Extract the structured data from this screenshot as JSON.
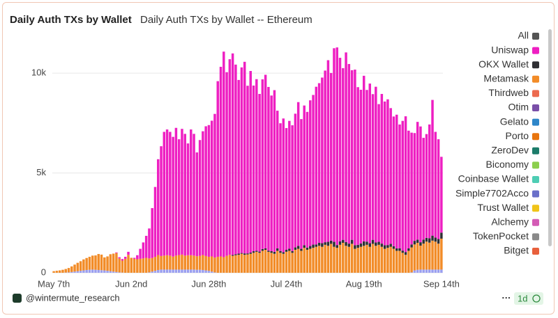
{
  "chart_data": {
    "type": "bar",
    "stacked": true,
    "title": "Daily Auth TXs by Wallet",
    "subtitle": "Daily Auth TXs by Wallet -- Ethereum",
    "footer": "@wintermute_research",
    "interval": "1d",
    "more": "···",
    "ylim": [
      0,
      11400
    ],
    "yticks": [
      0,
      {
        "value": 5000,
        "label": "5k"
      },
      {
        "value": 10000,
        "label": "10k"
      }
    ],
    "grid": true,
    "legend_all": {
      "name": "All",
      "color": "#555555"
    },
    "categories": [
      "May 7th",
      null,
      null,
      null,
      null,
      null,
      null,
      null,
      null,
      null,
      null,
      null,
      null,
      null,
      null,
      null,
      null,
      null,
      null,
      null,
      null,
      null,
      null,
      null,
      null,
      null,
      "Jun 2nd",
      null,
      null,
      null,
      null,
      null,
      null,
      null,
      null,
      null,
      null,
      null,
      null,
      null,
      null,
      null,
      null,
      null,
      null,
      null,
      null,
      null,
      null,
      null,
      null,
      null,
      "Jun 28th",
      null,
      null,
      null,
      null,
      null,
      null,
      null,
      null,
      null,
      null,
      null,
      null,
      null,
      null,
      null,
      null,
      null,
      null,
      null,
      null,
      null,
      null,
      null,
      null,
      null,
      "Jul 24th",
      null,
      null,
      null,
      null,
      null,
      null,
      null,
      null,
      null,
      null,
      null,
      null,
      null,
      null,
      null,
      null,
      null,
      null,
      null,
      null,
      null,
      null,
      null,
      null,
      null,
      "Aug 19th",
      null,
      null,
      null,
      null,
      null,
      null,
      null,
      null,
      null,
      null,
      null,
      null,
      null,
      null,
      null,
      null,
      null,
      null,
      null,
      null,
      null,
      null,
      null,
      null,
      null,
      "Sep 14th"
    ],
    "series": [
      {
        "name": "Uniswap",
        "color": "#ee1fc2",
        "values": [
          0,
          0,
          0,
          0,
          0,
          0,
          0,
          0,
          0,
          0,
          0,
          0,
          0,
          0,
          0,
          0,
          0,
          0,
          0,
          0,
          0,
          30,
          60,
          80,
          100,
          150,
          0,
          50,
          200,
          500,
          800,
          1100,
          1500,
          2500,
          3500,
          4800,
          5500,
          6200,
          6300,
          6200,
          6000,
          6400,
          5800,
          6300,
          6100,
          5600,
          6300,
          6100,
          5200,
          5800,
          6200,
          6500,
          6600,
          6800,
          7200,
          8800,
          9500,
          10300,
          9200,
          9800,
          10100,
          9500,
          8700,
          9300,
          9600,
          8400,
          9100,
          8300,
          8600,
          7900,
          8500,
          8700,
          8200,
          7800,
          8100,
          6900,
          6400,
          6700,
          6100,
          6400,
          6300,
          6700,
          7200,
          6500,
          7000,
          6800,
          7300,
          7500,
          7900,
          8000,
          8300,
          8600,
          9100,
          8400,
          9700,
          9900,
          9200,
          8600,
          9500,
          9000,
          8500,
          8800,
          7900,
          7700,
          8300,
          7600,
          8000,
          7300,
          7800,
          6900,
          7500,
          7200,
          7300,
          6800,
          6500,
          6700,
          6200,
          6500,
          6800,
          5900,
          5600,
          5400,
          5900,
          5800,
          5100,
          5200,
          5700,
          6800,
          5300,
          5000,
          3800
        ]
      },
      {
        "name": "OKX Wallet",
        "color": "#2f2f33",
        "values": [
          0,
          0,
          0,
          0,
          0,
          0,
          0,
          0,
          0,
          0,
          0,
          0,
          0,
          0,
          0,
          0,
          0,
          0,
          0,
          0,
          0,
          0,
          0,
          0,
          0,
          0,
          0,
          0,
          0,
          0,
          0,
          0,
          0,
          0,
          0,
          0,
          0,
          0,
          0,
          0,
          0,
          0,
          0,
          0,
          0,
          0,
          0,
          0,
          0,
          0,
          0,
          0,
          0,
          0,
          0,
          0,
          0,
          0,
          0,
          0,
          40,
          50,
          60,
          40,
          70,
          50,
          60,
          80,
          50,
          60,
          90,
          70,
          60,
          80,
          100,
          120,
          90,
          80,
          100,
          110,
          90,
          120,
          150,
          100,
          130,
          110,
          140,
          160,
          120,
          150,
          180,
          130,
          200,
          160,
          250,
          140,
          170,
          150,
          190,
          160,
          200,
          180,
          150,
          170,
          220,
          160,
          180,
          200,
          170,
          150,
          160,
          180,
          140,
          150,
          130,
          120,
          130,
          110,
          140,
          120,
          150,
          180,
          160,
          170,
          200,
          190,
          220,
          250,
          200,
          230,
          300
        ]
      },
      {
        "name": "Metamask",
        "color": "#f28c28",
        "values": [
          80,
          100,
          120,
          150,
          180,
          220,
          280,
          350,
          420,
          480,
          550,
          600,
          650,
          700,
          720,
          800,
          780,
          650,
          720,
          850,
          900,
          950,
          700,
          600,
          700,
          900,
          750,
          700,
          680,
          700,
          720,
          750,
          700,
          680,
          700,
          750,
          680,
          700,
          720,
          700,
          650,
          700,
          730,
          750,
          700,
          720,
          720,
          700,
          680,
          700,
          750,
          720,
          700,
          760,
          740,
          800,
          820,
          780,
          850,
          900,
          850,
          880,
          900,
          950,
          900,
          920,
          950,
          1000,
          1050,
          1000,
          1100,
          1150,
          1050,
          1000,
          950,
          1100,
          1000,
          950,
          1050,
          1100,
          1000,
          1150,
          1200,
          1100,
          1250,
          1150,
          1200,
          1250,
          1300,
          1350,
          1300,
          1400,
          1350,
          1450,
          1300,
          1250,
          1400,
          1500,
          1350,
          1300,
          1450,
          1200,
          1250,
          1300,
          1350,
          1400,
          1300,
          1450,
          1350,
          1400,
          1300,
          1200,
          1250,
          1300,
          1200,
          1100,
          1100,
          1000,
          900,
          1100,
          1250,
          1300,
          1350,
          1200,
          1300,
          1400,
          1350,
          1450,
          1400,
          1300,
          1550
        ]
      },
      {
        "name": "Thirdweb",
        "color": "#ec6a4f"
      },
      {
        "name": "Otim",
        "color": "#7a4fa8"
      },
      {
        "name": "Gelato",
        "color": "#2e86c9"
      },
      {
        "name": "Porto",
        "color": "#e8750f"
      },
      {
        "name": "ZeroDev",
        "color": "#1c7c6a"
      },
      {
        "name": "Biconomy",
        "color": "#8ccf4d"
      },
      {
        "name": "Coinbase Wallet",
        "color": "#4ecdb4"
      },
      {
        "name": "Simple7702Acco",
        "color": "#6a70c9",
        "barcolor": "#9a9ff0",
        "values": [
          0,
          0,
          0,
          0,
          10,
          20,
          40,
          60,
          80,
          100,
          120,
          140,
          150,
          160,
          150,
          140,
          130,
          120,
          100,
          80,
          60,
          40,
          20,
          10,
          0,
          0,
          0,
          0,
          0,
          0,
          0,
          0,
          20,
          60,
          100,
          140,
          160,
          160,
          160,
          160,
          160,
          160,
          160,
          160,
          160,
          160,
          160,
          160,
          150,
          150,
          140,
          120,
          100,
          60,
          20,
          0,
          0,
          0,
          0,
          0,
          0,
          0,
          0,
          0,
          0,
          0,
          0,
          0,
          0,
          0,
          0,
          0,
          0,
          0,
          0,
          0,
          0,
          0,
          0,
          0,
          0,
          0,
          0,
          0,
          0,
          0,
          0,
          0,
          0,
          0,
          0,
          0,
          0,
          0,
          0,
          0,
          0,
          0,
          0,
          0,
          0,
          0,
          0,
          0,
          0,
          0,
          0,
          0,
          0,
          0,
          0,
          0,
          0,
          0,
          0,
          0,
          0,
          0,
          0,
          0,
          20,
          120,
          150,
          160,
          160,
          160,
          160,
          160,
          160,
          160,
          160
        ]
      },
      {
        "name": "Trust Wallet",
        "color": "#f0c419"
      },
      {
        "name": "Alchemy",
        "color": "#d45bb5"
      },
      {
        "name": "TokenPocket",
        "color": "#8a8a8a"
      },
      {
        "name": "Bitget",
        "color": "#e8603c"
      }
    ]
  }
}
